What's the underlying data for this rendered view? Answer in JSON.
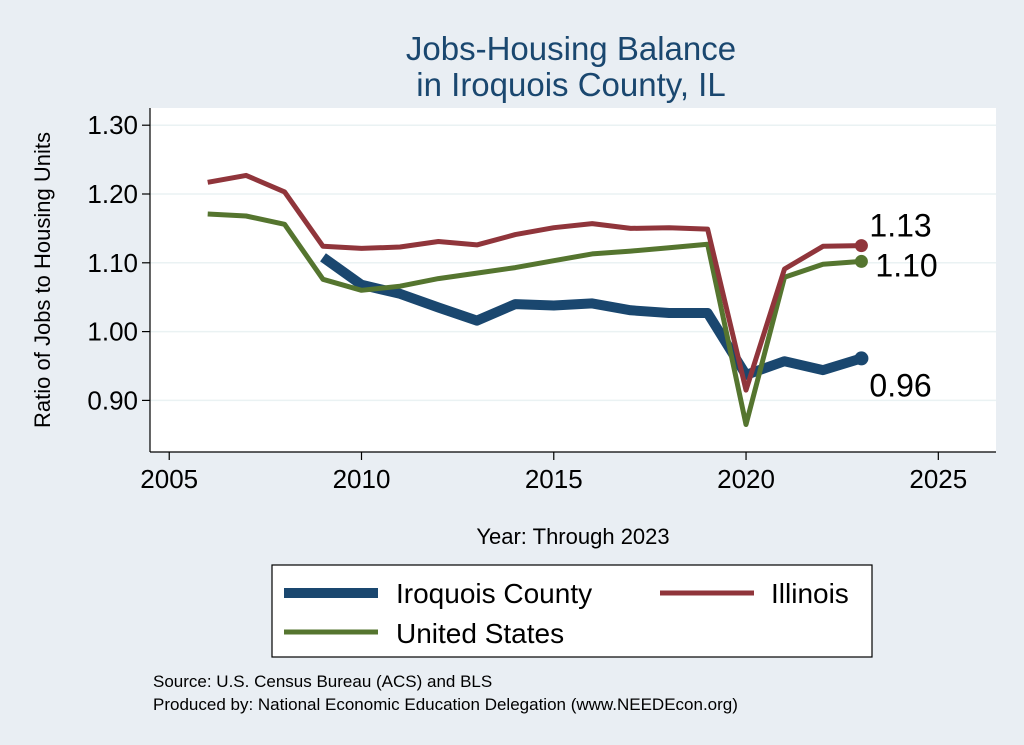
{
  "chart_data": {
    "type": "line",
    "title_lines": [
      "Jobs-Housing Balance",
      "in Iroquois County, IL"
    ],
    "xlabel": "Year: Through 2023",
    "ylabel": "Ratio of Jobs to Housing Units",
    "xlim": [
      2004.5,
      2026.5
    ],
    "ylim": [
      0.825,
      1.325
    ],
    "x_ticks": [
      2005,
      2010,
      2015,
      2020,
      2025
    ],
    "y_ticks": [
      0.9,
      1.0,
      1.1,
      1.2,
      1.3
    ],
    "y_tick_labels": [
      "0.90",
      "1.00",
      "1.10",
      "1.20",
      "1.30"
    ],
    "grid": true,
    "legend_position": "bottom",
    "series": [
      {
        "name": "Iroquois County",
        "color": "#1a476f",
        "x": [
          2009,
          2010,
          2011,
          2012,
          2013,
          2014,
          2015,
          2016,
          2017,
          2018,
          2019,
          2020,
          2021,
          2022,
          2023
        ],
        "values": [
          1.108,
          1.068,
          1.055,
          1.035,
          1.016,
          1.04,
          1.038,
          1.041,
          1.031,
          1.027,
          1.027,
          0.937,
          0.957,
          0.944,
          0.961
        ],
        "end_label": "0.96"
      },
      {
        "name": "Illinois",
        "color": "#90353b",
        "x": [
          2006,
          2007,
          2008,
          2009,
          2010,
          2011,
          2012,
          2013,
          2014,
          2015,
          2016,
          2017,
          2018,
          2019,
          2020,
          2021,
          2022,
          2023
        ],
        "values": [
          1.217,
          1.227,
          1.203,
          1.124,
          1.121,
          1.123,
          1.131,
          1.126,
          1.141,
          1.151,
          1.157,
          1.15,
          1.151,
          1.149,
          0.915,
          1.091,
          1.124,
          1.125
        ],
        "end_label": "1.13"
      },
      {
        "name": "United States",
        "color": "#55752f",
        "x": [
          2006,
          2007,
          2008,
          2009,
          2010,
          2011,
          2012,
          2013,
          2014,
          2015,
          2016,
          2017,
          2018,
          2019,
          2020,
          2021,
          2022,
          2023
        ],
        "values": [
          1.171,
          1.168,
          1.156,
          1.076,
          1.06,
          1.066,
          1.077,
          1.085,
          1.093,
          1.103,
          1.113,
          1.117,
          1.122,
          1.127,
          0.865,
          1.079,
          1.098,
          1.102
        ],
        "end_label": "1.10"
      }
    ],
    "notes": [
      "Source: U.S. Census Bureau (ACS) and BLS",
      "Produced by: National Economic Education Delegation (www.NEEDEcon.org)"
    ]
  }
}
